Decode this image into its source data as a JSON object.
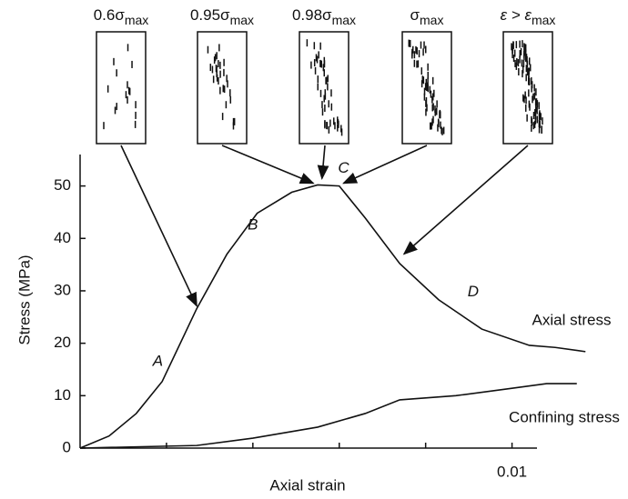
{
  "chart_data": {
    "type": "line",
    "xlabel": "Axial strain",
    "ylabel": "Stress (MPa)",
    "xlim": [
      0,
      0.0118
    ],
    "ylim": [
      0,
      56
    ],
    "xticks": [
      {
        "value": 0.01,
        "label": "0.01"
      }
    ],
    "x_minor_ticks": [
      0.002,
      0.004,
      0.006,
      0.008
    ],
    "yticks": [
      0,
      10,
      20,
      30,
      40,
      50
    ],
    "series": [
      {
        "name": "Axial stress",
        "color": "#111111",
        "x": [
          0,
          0.00067,
          0.0013,
          0.0019,
          0.0027,
          0.0034,
          0.0041,
          0.0049,
          0.0055,
          0.006,
          0.0066,
          0.0074,
          0.0083,
          0.0093,
          0.0104,
          0.011,
          0.0117
        ],
        "values": [
          0,
          2.3,
          6.6,
          12.7,
          26.6,
          37,
          44.8,
          48.8,
          50.2,
          50,
          43.9,
          35.2,
          28.3,
          22.7,
          19.6,
          19.2,
          18.4
        ]
      },
      {
        "name": "Confining stress",
        "color": "#111111",
        "x": [
          0,
          0.0027,
          0.004,
          0.0055,
          0.0066,
          0.0074,
          0.0087,
          0.0099,
          0.0108,
          0.0115
        ],
        "values": [
          0,
          0.5,
          1.9,
          4,
          6.6,
          9.2,
          10,
          11.3,
          12.3,
          12.3
        ]
      }
    ],
    "annotations": [
      {
        "text": "A",
        "x": 0.0018,
        "y": 16.5
      },
      {
        "text": "B",
        "x": 0.004,
        "y": 42.5
      },
      {
        "text": "C",
        "x": 0.0061,
        "y": 53.3
      },
      {
        "text": "D",
        "x": 0.0091,
        "y": 29.7
      }
    ],
    "insets": [
      {
        "label": "0.6σ",
        "sub": "max",
        "x": 0.0027,
        "y": 26.6
      },
      {
        "label": "0.95σ",
        "sub": "max",
        "x": 0.0054,
        "y": 50
      },
      {
        "label": "0.98σ",
        "sub": "max",
        "x": 0.0056,
        "y": 50.9
      },
      {
        "label": "σ",
        "sub": "max",
        "x": 0.0061,
        "y": 50
      },
      {
        "label": "ε > ε",
        "sub": "max",
        "x": 0.0075,
        "y": 36.5
      }
    ]
  }
}
